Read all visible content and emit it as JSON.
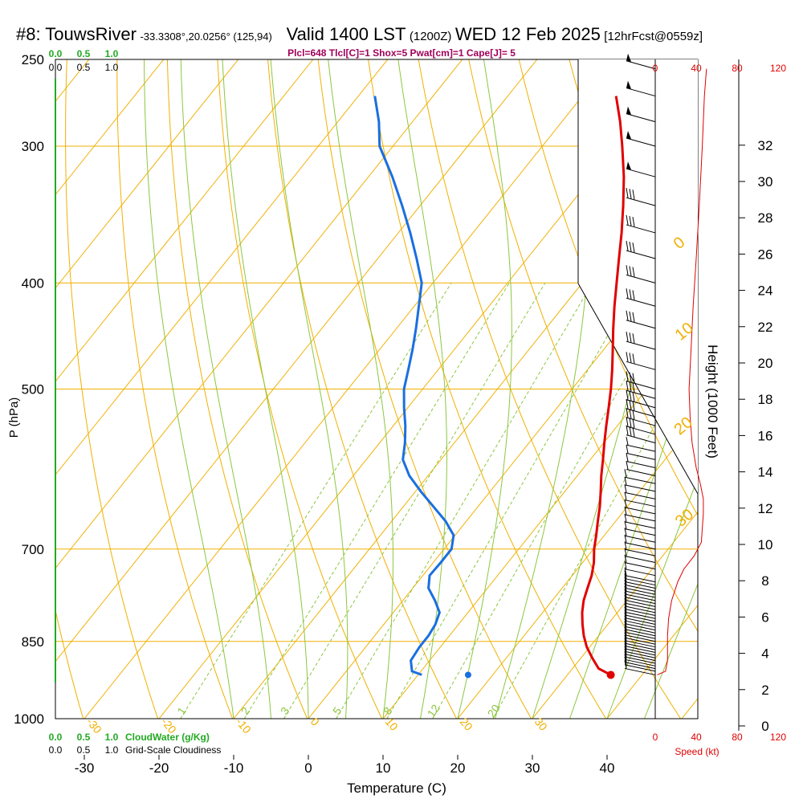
{
  "title": {
    "station": "#8: TouwsRiver",
    "coords": "-33.3308°,20.0256° (125,94)",
    "valid": "Valid 1400 LST",
    "utc": "(1200Z)",
    "date": "WED 12 Feb 2025",
    "fcst": "[12hrFcst@0559z]"
  },
  "subtitle": "Plcl=648 Tlcl[C]=1 Shox=5 Pwat[cm]=1 Cape[J]= 5",
  "colors": {
    "temperature": "#e00000",
    "dewpoint": "#1a6fe0",
    "isotherm": "#f0b000",
    "mixing_ratio": "#8cc63f",
    "cloudwater": "#22aa22",
    "speed": "#e00000",
    "parcel": "#1a6fe0"
  },
  "axes": {
    "x_label": "Temperature (C)",
    "y_label": "P (hPa)",
    "height_label": "Height (1000 Feet)",
    "speed_label": "Speed (kt)",
    "x_ticks": [
      "-30",
      "-20",
      "-10",
      "0",
      "10",
      "20",
      "30",
      "40"
    ],
    "p_ticks": [
      {
        "p": 250,
        "label": "250"
      },
      {
        "p": 300,
        "label": "300"
      },
      {
        "p": 400,
        "label": "400"
      },
      {
        "p": 500,
        "label": "500"
      },
      {
        "p": 700,
        "label": "700"
      },
      {
        "p": 850,
        "label": "850"
      },
      {
        "p": 1000,
        "label": "1000"
      }
    ],
    "height_ticks": [
      "0",
      "2",
      "4",
      "6",
      "8",
      "10",
      "12",
      "14",
      "16",
      "18",
      "20",
      "22",
      "24",
      "26",
      "28",
      "30",
      "32"
    ],
    "speed_ticks": [
      "0",
      "40",
      "80",
      "120"
    ],
    "cloudwater_ticks": [
      "0.0",
      "0.5",
      "1.0"
    ],
    "cloudiness_ticks": [
      "0.0",
      "0.5",
      "1.0"
    ],
    "cloudwater_label": "CloudWater (g/Kg)",
    "cloudiness_label": "Grid-Scale Cloudiness"
  },
  "chart_data": {
    "type": "line",
    "title": "#8: TouwsRiver Valid 1400 LST (1200Z) WED 12 Feb 2025",
    "xlabel": "Temperature (C)",
    "ylabel": "P (hPa)",
    "xlim": [
      -35,
      48
    ],
    "ylim": [
      1000,
      250
    ],
    "theta_labels": [
      {
        "t": -30,
        "label": "-30"
      },
      {
        "t": -20,
        "label": "-20"
      },
      {
        "t": -10,
        "label": "-10"
      },
      {
        "t": 0,
        "label": "0"
      },
      {
        "t": 10,
        "label": "10"
      },
      {
        "t": 20,
        "label": "20"
      },
      {
        "t": 30,
        "label": "30"
      }
    ],
    "isotherm_labels": [
      {
        "t": 0,
        "label": "0"
      },
      {
        "t": 10,
        "label": "10"
      },
      {
        "t": 20,
        "label": "20"
      },
      {
        "t": 30,
        "label": "30"
      }
    ],
    "mixing_ratios": [
      {
        "w": 1,
        "label": "1"
      },
      {
        "w": 2,
        "label": "2"
      },
      {
        "w": 3,
        "label": "3"
      },
      {
        "w": 5,
        "label": "5"
      },
      {
        "w": 8,
        "label": "8"
      },
      {
        "w": 12,
        "label": "12"
      },
      {
        "w": 20,
        "label": "20"
      }
    ],
    "series": [
      {
        "name": "Temperature",
        "points": [
          {
            "p": 912,
            "t": 35.8
          },
          {
            "p": 900,
            "t": 33.5
          },
          {
            "p": 880,
            "t": 31.5
          },
          {
            "p": 860,
            "t": 29.6
          },
          {
            "p": 840,
            "t": 28.0
          },
          {
            "p": 820,
            "t": 26.6
          },
          {
            "p": 800,
            "t": 25.3
          },
          {
            "p": 780,
            "t": 24.2
          },
          {
            "p": 760,
            "t": 23.4
          },
          {
            "p": 740,
            "t": 22.6
          },
          {
            "p": 720,
            "t": 21.5
          },
          {
            "p": 700,
            "t": 20.1
          },
          {
            "p": 680,
            "t": 18.9
          },
          {
            "p": 660,
            "t": 17.6
          },
          {
            "p": 640,
            "t": 16.3
          },
          {
            "p": 620,
            "t": 14.8
          },
          {
            "p": 600,
            "t": 13.2
          },
          {
            "p": 580,
            "t": 11.7
          },
          {
            "p": 560,
            "t": 10.1
          },
          {
            "p": 540,
            "t": 8.5
          },
          {
            "p": 520,
            "t": 6.9
          },
          {
            "p": 500,
            "t": 5.2
          },
          {
            "p": 480,
            "t": 3.3
          },
          {
            "p": 460,
            "t": 1.2
          },
          {
            "p": 440,
            "t": -1.0
          },
          {
            "p": 420,
            "t": -3.2
          },
          {
            "p": 400,
            "t": -5.4
          },
          {
            "p": 380,
            "t": -7.7
          },
          {
            "p": 360,
            "t": -10.1
          },
          {
            "p": 340,
            "t": -12.8
          },
          {
            "p": 320,
            "t": -15.8
          },
          {
            "p": 300,
            "t": -19.3
          },
          {
            "p": 285,
            "t": -22.2
          },
          {
            "p": 270,
            "t": -25.5
          }
        ]
      },
      {
        "name": "Dewpoint",
        "points": [
          {
            "p": 912,
            "t": 10.5
          },
          {
            "p": 905,
            "t": 8.8
          },
          {
            "p": 885,
            "t": 7.5
          },
          {
            "p": 860,
            "t": 7.2
          },
          {
            "p": 840,
            "t": 7.2
          },
          {
            "p": 820,
            "t": 6.9
          },
          {
            "p": 800,
            "t": 6.2
          },
          {
            "p": 780,
            "t": 4.3
          },
          {
            "p": 760,
            "t": 2.1
          },
          {
            "p": 740,
            "t": 0.9
          },
          {
            "p": 720,
            "t": 1.0
          },
          {
            "p": 700,
            "t": 1.0
          },
          {
            "p": 680,
            "t": -0.2
          },
          {
            "p": 660,
            "t": -2.8
          },
          {
            "p": 640,
            "t": -6.0
          },
          {
            "p": 620,
            "t": -9.3
          },
          {
            "p": 600,
            "t": -12.5
          },
          {
            "p": 580,
            "t": -15.1
          },
          {
            "p": 560,
            "t": -16.6
          },
          {
            "p": 540,
            "t": -18.4
          },
          {
            "p": 520,
            "t": -20.5
          },
          {
            "p": 500,
            "t": -22.5
          },
          {
            "p": 480,
            "t": -24.0
          },
          {
            "p": 460,
            "t": -25.6
          },
          {
            "p": 440,
            "t": -27.4
          },
          {
            "p": 420,
            "t": -29.4
          },
          {
            "p": 400,
            "t": -31.5
          },
          {
            "p": 380,
            "t": -34.8
          },
          {
            "p": 360,
            "t": -38.4
          },
          {
            "p": 340,
            "t": -42.4
          },
          {
            "p": 320,
            "t": -46.8
          },
          {
            "p": 300,
            "t": -51.8
          },
          {
            "p": 285,
            "t": -54.5
          },
          {
            "p": 270,
            "t": -57.8
          }
        ]
      },
      {
        "name": "Parcel dewpoint",
        "points": [
          {
            "p": 912,
            "t": 16.7
          }
        ]
      },
      {
        "name": "Wind speed",
        "points": [
          {
            "p": 912,
            "spd": 2
          },
          {
            "p": 905,
            "spd": 10
          },
          {
            "p": 885,
            "spd": 12
          },
          {
            "p": 865,
            "spd": 12
          },
          {
            "p": 840,
            "spd": 12
          },
          {
            "p": 810,
            "spd": 13
          },
          {
            "p": 780,
            "spd": 16
          },
          {
            "p": 750,
            "spd": 22
          },
          {
            "p": 730,
            "spd": 28
          },
          {
            "p": 710,
            "spd": 38
          },
          {
            "p": 690,
            "spd": 45
          },
          {
            "p": 670,
            "spd": 46
          },
          {
            "p": 650,
            "spd": 47
          },
          {
            "p": 630,
            "spd": 47
          },
          {
            "p": 610,
            "spd": 44
          },
          {
            "p": 590,
            "spd": 40
          },
          {
            "p": 560,
            "spd": 36
          },
          {
            "p": 530,
            "spd": 34
          },
          {
            "p": 500,
            "spd": 33
          },
          {
            "p": 460,
            "spd": 35
          },
          {
            "p": 420,
            "spd": 37
          },
          {
            "p": 380,
            "spd": 40
          },
          {
            "p": 340,
            "spd": 43
          },
          {
            "p": 300,
            "spd": 46
          },
          {
            "p": 270,
            "spd": 48
          },
          {
            "p": 255,
            "spd": 50
          }
        ]
      }
    ],
    "wind_barb_levels": [
      912,
      905,
      900,
      895,
      890,
      885,
      880,
      875,
      870,
      865,
      860,
      855,
      850,
      845,
      840,
      835,
      830,
      825,
      820,
      815,
      810,
      805,
      800,
      795,
      790,
      785,
      780,
      775,
      770,
      765,
      760,
      755,
      750,
      740,
      730,
      720,
      710,
      700,
      690,
      680,
      670,
      660,
      650,
      640,
      630,
      620,
      610,
      600,
      590,
      580,
      570,
      560,
      550,
      540,
      530,
      520,
      510,
      500,
      480,
      460,
      440,
      420,
      400,
      380,
      360,
      340,
      320,
      300,
      285,
      270,
      255
    ]
  }
}
